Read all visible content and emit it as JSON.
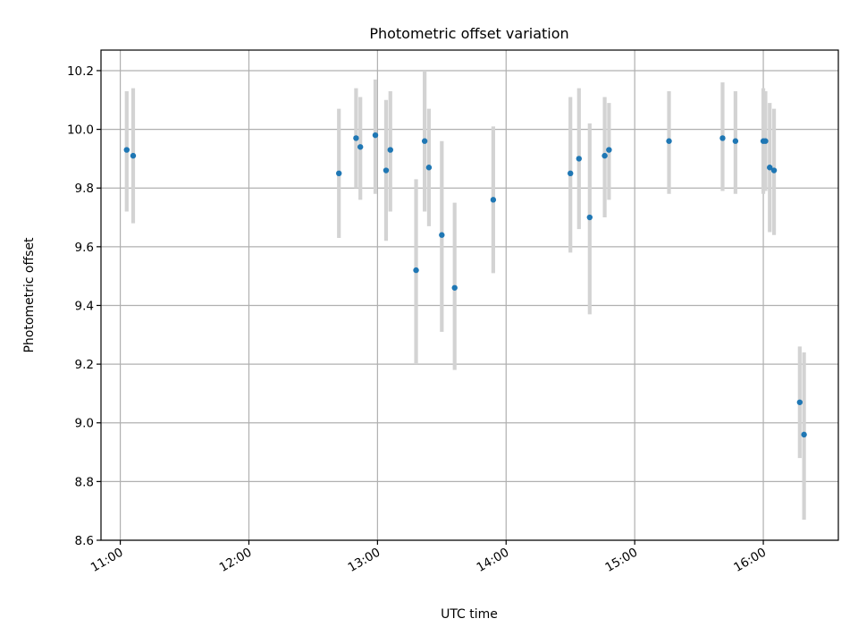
{
  "chart_data": {
    "type": "scatter",
    "title": "Photometric offset variation",
    "xlabel": "UTC time",
    "ylabel": "Photometric offset",
    "grid": true,
    "x_format": "HH:MM",
    "xlim": [
      "10:51",
      "16:35"
    ],
    "ylim": [
      8.6,
      10.27
    ],
    "x_ticks": [
      "11:00",
      "12:00",
      "13:00",
      "14:00",
      "15:00",
      "16:00"
    ],
    "y_ticks": [
      "8.6",
      "8.8",
      "9.0",
      "9.2",
      "9.4",
      "9.6",
      "9.8",
      "10.0",
      "10.2"
    ],
    "colors": {
      "point": "#1f77b4",
      "errorbar": "#d3d3d3"
    },
    "points": [
      {
        "x": "11:03",
        "y": 9.93,
        "ylow": 9.72,
        "yhigh": 10.13
      },
      {
        "x": "11:06",
        "y": 9.91,
        "ylow": 9.68,
        "yhigh": 10.14
      },
      {
        "x": "12:42",
        "y": 9.85,
        "ylow": 9.63,
        "yhigh": 10.07
      },
      {
        "x": "12:50",
        "y": 9.97,
        "ylow": 9.8,
        "yhigh": 10.14
      },
      {
        "x": "12:52",
        "y": 9.94,
        "ylow": 9.76,
        "yhigh": 10.11
      },
      {
        "x": "12:59",
        "y": 9.98,
        "ylow": 9.78,
        "yhigh": 10.17
      },
      {
        "x": "13:04",
        "y": 9.86,
        "ylow": 9.62,
        "yhigh": 10.1
      },
      {
        "x": "13:06",
        "y": 9.93,
        "ylow": 9.72,
        "yhigh": 10.13
      },
      {
        "x": "13:18",
        "y": 9.52,
        "ylow": 9.2,
        "yhigh": 9.83
      },
      {
        "x": "13:22",
        "y": 9.96,
        "ylow": 9.72,
        "yhigh": 10.2
      },
      {
        "x": "13:24",
        "y": 9.87,
        "ylow": 9.67,
        "yhigh": 10.07
      },
      {
        "x": "13:30",
        "y": 9.64,
        "ylow": 9.31,
        "yhigh": 9.96
      },
      {
        "x": "13:36",
        "y": 9.46,
        "ylow": 9.18,
        "yhigh": 9.75
      },
      {
        "x": "13:54",
        "y": 9.76,
        "ylow": 9.51,
        "yhigh": 10.01
      },
      {
        "x": "14:30",
        "y": 9.85,
        "ylow": 9.58,
        "yhigh": 10.11
      },
      {
        "x": "14:34",
        "y": 9.9,
        "ylow": 9.66,
        "yhigh": 10.14
      },
      {
        "x": "14:39",
        "y": 9.7,
        "ylow": 9.37,
        "yhigh": 10.02
      },
      {
        "x": "14:46",
        "y": 9.91,
        "ylow": 9.7,
        "yhigh": 10.11
      },
      {
        "x": "14:48",
        "y": 9.93,
        "ylow": 9.76,
        "yhigh": 10.09
      },
      {
        "x": "15:16",
        "y": 9.96,
        "ylow": 9.78,
        "yhigh": 10.13
      },
      {
        "x": "15:41",
        "y": 9.97,
        "ylow": 9.79,
        "yhigh": 10.16
      },
      {
        "x": "15:47",
        "y": 9.96,
        "ylow": 9.78,
        "yhigh": 10.13
      },
      {
        "x": "16:00",
        "y": 9.96,
        "ylow": 9.78,
        "yhigh": 10.14
      },
      {
        "x": "16:01",
        "y": 9.96,
        "ylow": 9.79,
        "yhigh": 10.13
      },
      {
        "x": "16:03",
        "y": 9.87,
        "ylow": 9.65,
        "yhigh": 10.09
      },
      {
        "x": "16:05",
        "y": 9.86,
        "ylow": 9.64,
        "yhigh": 10.07
      },
      {
        "x": "16:17",
        "y": 9.07,
        "ylow": 8.88,
        "yhigh": 9.26
      },
      {
        "x": "16:19",
        "y": 8.96,
        "ylow": 8.67,
        "yhigh": 9.24
      }
    ]
  }
}
